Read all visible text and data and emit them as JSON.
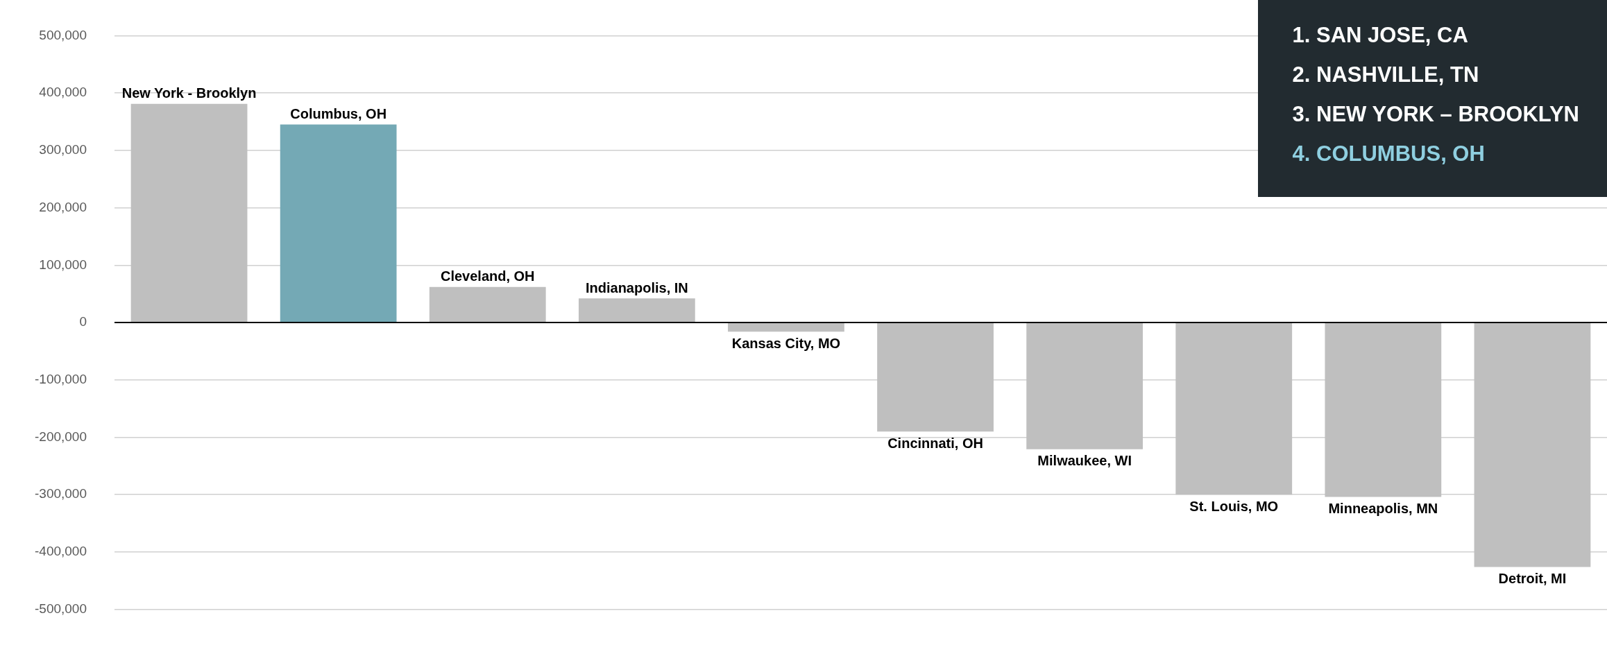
{
  "chart_data": {
    "type": "bar",
    "categories": [
      "New York - Brooklyn",
      "Columbus, OH",
      "Cleveland, OH",
      "Indianapolis, IN",
      "Kansas City, MO",
      "Cincinnati, OH",
      "Milwaukee, WI",
      "St. Louis, MO",
      "Minneapolis, MN",
      "Detroit, MI"
    ],
    "values": [
      381000,
      345000,
      62000,
      42000,
      -16000,
      -190000,
      -221000,
      -300000,
      -304000,
      -426000
    ],
    "colors": [
      "#bfbfbf",
      "#74a9b5",
      "#bfbfbf",
      "#bfbfbf",
      "#bfbfbf",
      "#bfbfbf",
      "#bfbfbf",
      "#bfbfbf",
      "#bfbfbf",
      "#bfbfbf"
    ],
    "ylim": [
      -500000,
      500000
    ],
    "yticks": [
      {
        "value": -500000,
        "label": "-500,000"
      },
      {
        "value": -400000,
        "label": "-400,000"
      },
      {
        "value": -300000,
        "label": "-300,000"
      },
      {
        "value": -200000,
        "label": "-200,000"
      },
      {
        "value": -100000,
        "label": "-100,000"
      },
      {
        "value": 0,
        "label": "0"
      },
      {
        "value": 100000,
        "label": "100,000"
      },
      {
        "value": 200000,
        "label": "200,000"
      },
      {
        "value": 300000,
        "label": "300,000"
      },
      {
        "value": 400000,
        "label": "400,000"
      },
      {
        "value": 500000,
        "label": "500,000"
      }
    ],
    "grid": "y",
    "legend": false,
    "annotations": [
      "1.  SAN JOSE, CA",
      "2.  NASHVILLE, TN",
      "3.  NEW YORK – BROOKLYN",
      "4.  COLUMBUS, OH"
    ]
  }
}
